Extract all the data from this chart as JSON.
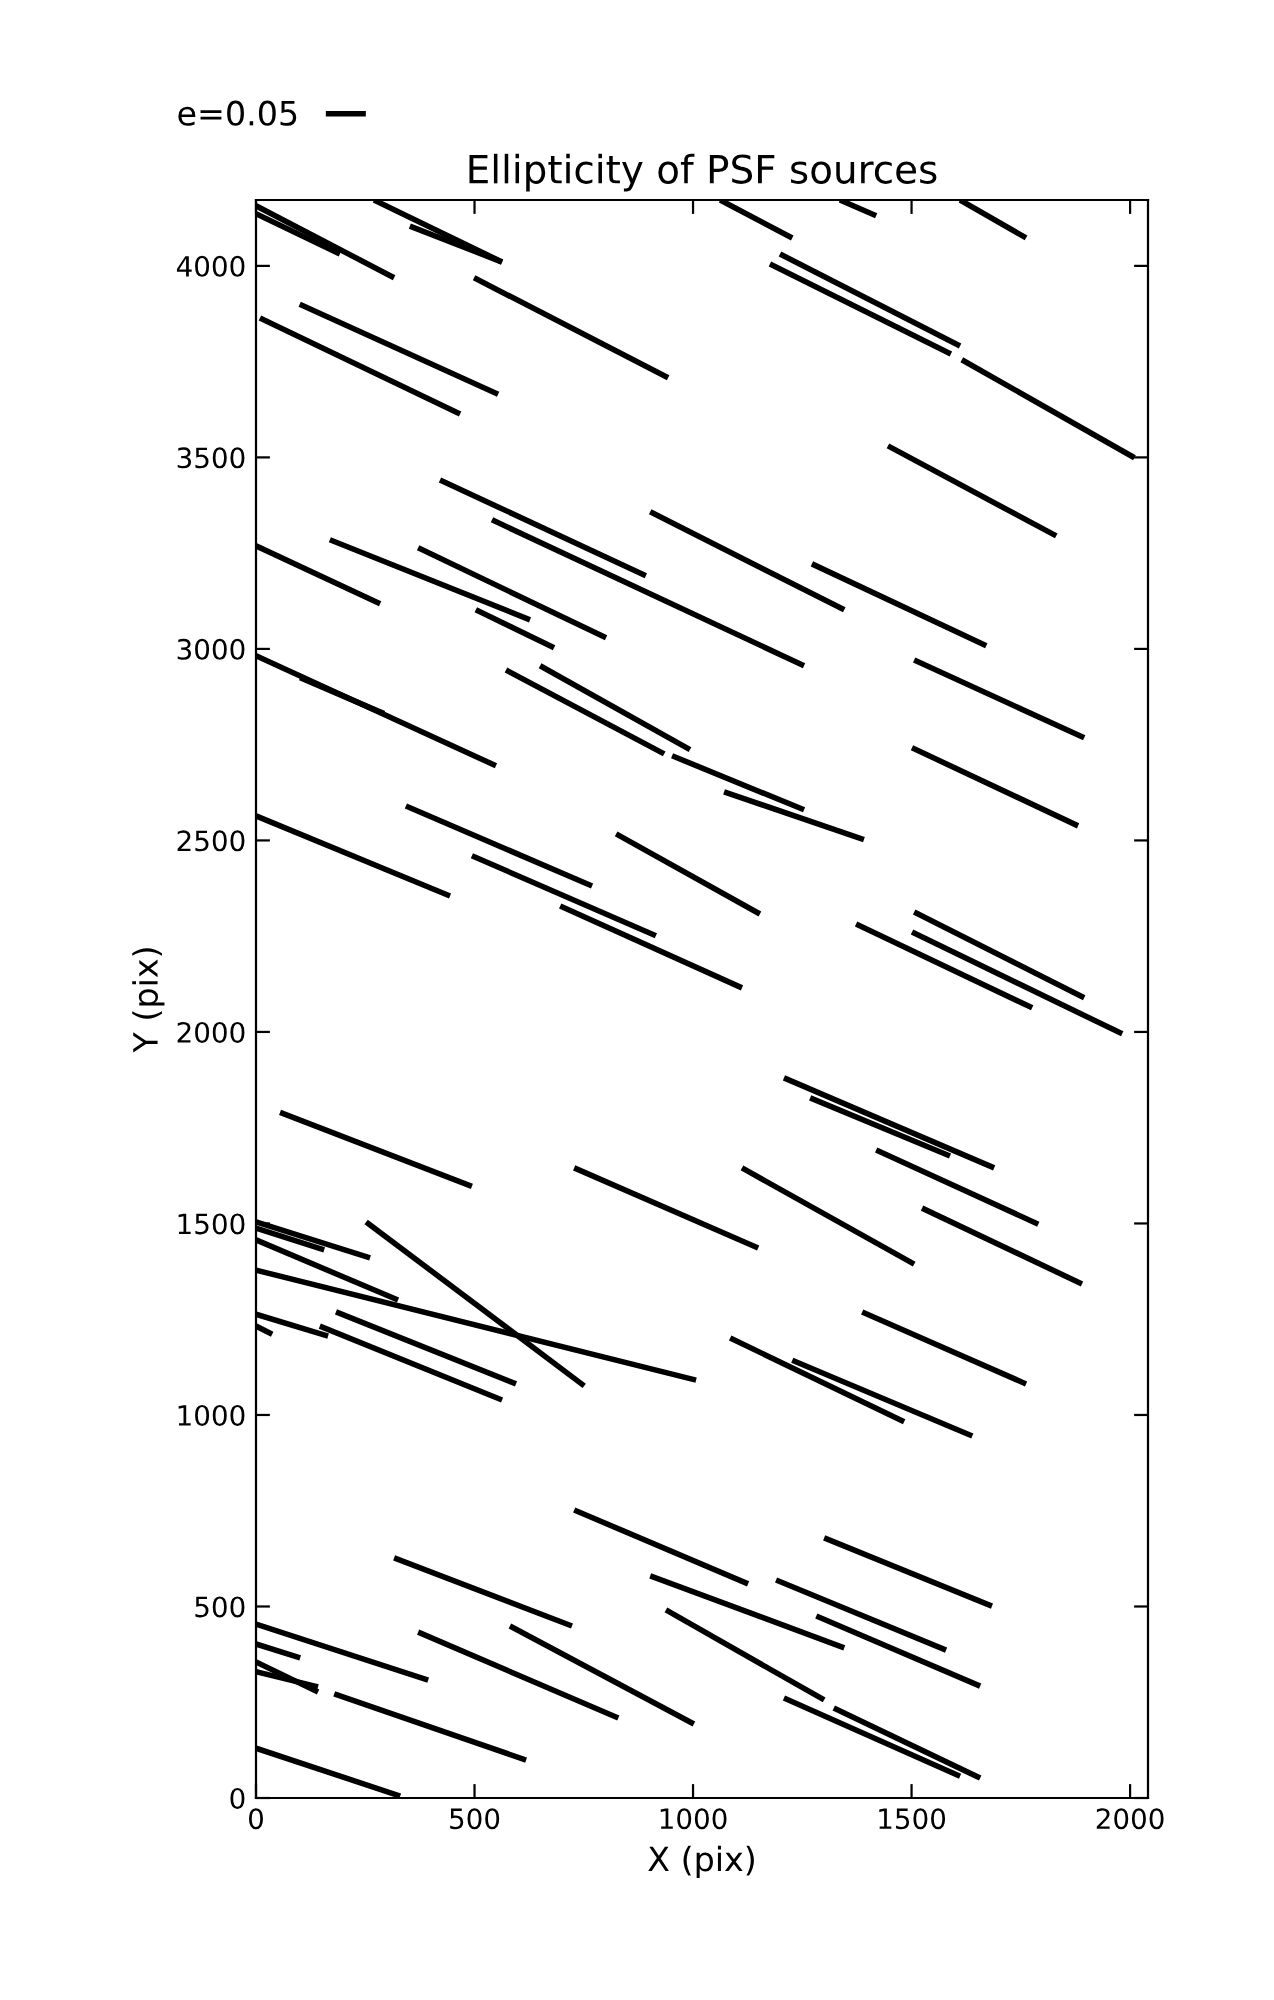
{
  "chart_data": {
    "type": "line",
    "title": "Ellipticity of PSF sources",
    "xlabel": "X (pix)",
    "ylabel": "Y (pix)",
    "xlim": [
      0,
      2041
    ],
    "ylim": [
      0,
      4172
    ],
    "xticks": [
      0,
      500,
      1000,
      1500,
      2000
    ],
    "yticks": [
      0,
      500,
      1000,
      1500,
      2000,
      2500,
      3000,
      3500,
      4000
    ],
    "grid": false,
    "legend": "top left",
    "marker": "none",
    "line_style": "solid",
    "series": [
      {
        "name": "e=0.05",
        "color": "#000000",
        "x": [
          0,
          316
        ],
        "values": [
          4157,
          3969
        ]
      },
      {
        "color": "#000000",
        "x": [
          0,
          192
        ],
        "values": [
          4136,
          4031
        ]
      },
      {
        "color": "#000000",
        "x": [
          270,
          563
        ],
        "values": [
          4172,
          4010
        ]
      },
      {
        "color": "#000000",
        "x": [
          352,
          563
        ],
        "values": [
          4104,
          4010
        ]
      },
      {
        "color": "#000000",
        "x": [
          499,
          943
        ],
        "values": [
          3969,
          3708
        ]
      },
      {
        "color": "#000000",
        "x": [
          9,
          467
        ],
        "values": [
          3864,
          3613
        ]
      },
      {
        "color": "#000000",
        "x": [
          100,
          554
        ],
        "values": [
          3900,
          3665
        ]
      },
      {
        "color": "#000000",
        "x": [
          1062,
          1227
        ],
        "values": [
          4172,
          4073
        ]
      },
      {
        "color": "#000000",
        "x": [
          1336,
          1419
        ],
        "values": [
          4172,
          4131
        ]
      },
      {
        "color": "#000000",
        "x": [
          1611,
          1762
        ],
        "values": [
          4172,
          4073
        ]
      },
      {
        "color": "#000000",
        "x": [
          1199,
          1611
        ],
        "values": [
          4031,
          3791
        ]
      },
      {
        "color": "#000000",
        "x": [
          1176,
          1590
        ],
        "values": [
          4005,
          3770
        ]
      },
      {
        "color": "#000000",
        "x": [
          1615,
          2010
        ],
        "values": [
          3755,
          3499
        ]
      },
      {
        "color": "#000000",
        "x": [
          1446,
          1831
        ],
        "values": [
          3530,
          3295
        ]
      },
      {
        "color": "#000000",
        "x": [
          421,
          892
        ],
        "values": [
          3441,
          3191
        ]
      },
      {
        "color": "#000000",
        "x": [
          540,
          1254
        ],
        "values": [
          3337,
          2956
        ]
      },
      {
        "color": "#000000",
        "x": [
          902,
          1346
        ],
        "values": [
          3358,
          3102
        ]
      },
      {
        "color": "#000000",
        "x": [
          1272,
          1671
        ],
        "values": [
          3222,
          3008
        ]
      },
      {
        "color": "#000000",
        "x": [
          0,
          284
        ],
        "values": [
          3269,
          3118
        ]
      },
      {
        "color": "#000000",
        "x": [
          169,
          627
        ],
        "values": [
          3285,
          3076
        ]
      },
      {
        "color": "#000000",
        "x": [
          371,
          801
        ],
        "values": [
          3264,
          3029
        ]
      },
      {
        "color": "#000000",
        "x": [
          503,
          682
        ],
        "values": [
          3102,
          3003
        ]
      },
      {
        "color": "#000000",
        "x": [
          572,
          934
        ],
        "values": [
          2945,
          2726
        ]
      },
      {
        "color": "#000000",
        "x": [
          650,
          993
        ],
        "values": [
          2956,
          2737
        ]
      },
      {
        "color": "#000000",
        "x": [
          0,
          549
        ],
        "values": [
          2982,
          2695
        ]
      },
      {
        "color": "#000000",
        "x": [
          101,
          293
        ],
        "values": [
          2925,
          2831
        ]
      },
      {
        "color": "#000000",
        "x": [
          952,
          1254
        ],
        "values": [
          2721,
          2580
        ]
      },
      {
        "color": "#000000",
        "x": [
          1071,
          1391
        ],
        "values": [
          2627,
          2502
        ]
      },
      {
        "color": "#000000",
        "x": [
          824,
          1153
        ],
        "values": [
          2517,
          2308
        ]
      },
      {
        "color": "#000000",
        "x": [
          1506,
          1895
        ],
        "values": [
          2971,
          2768
        ]
      },
      {
        "color": "#000000",
        "x": [
          1501,
          1881
        ],
        "values": [
          2742,
          2538
        ]
      },
      {
        "color": "#000000",
        "x": [
          0,
          444
        ],
        "values": [
          2564,
          2355
        ]
      },
      {
        "color": "#000000",
        "x": [
          343,
          769
        ],
        "values": [
          2590,
          2381
        ]
      },
      {
        "color": "#000000",
        "x": [
          494,
          915
        ],
        "values": [
          2460,
          2251
        ]
      },
      {
        "color": "#000000",
        "x": [
          696,
          1112
        ],
        "values": [
          2329,
          2115
        ]
      },
      {
        "color": "#000000",
        "x": [
          1506,
          1895
        ],
        "values": [
          2313,
          2089
        ]
      },
      {
        "color": "#000000",
        "x": [
          1373,
          1776
        ],
        "values": [
          2282,
          2063
        ]
      },
      {
        "color": "#000000",
        "x": [
          1501,
          1982
        ],
        "values": [
          2261,
          1995
        ]
      },
      {
        "color": "#000000",
        "x": [
          55,
          494
        ],
        "values": [
          1790,
          1597
        ]
      },
      {
        "color": "#000000",
        "x": [
          728,
          1149
        ],
        "values": [
          1645,
          1436
        ]
      },
      {
        "color": "#000000",
        "x": [
          1112,
          1506
        ],
        "values": [
          1645,
          1394
        ]
      },
      {
        "color": "#000000",
        "x": [
          1208,
          1689
        ],
        "values": [
          1880,
          1645
        ]
      },
      {
        "color": "#000000",
        "x": [
          1268,
          1588
        ],
        "values": [
          1828,
          1676
        ]
      },
      {
        "color": "#000000",
        "x": [
          1419,
          1790
        ],
        "values": [
          1692,
          1498
        ]
      },
      {
        "color": "#000000",
        "x": [
          1524,
          1890
        ],
        "values": [
          1540,
          1342
        ]
      },
      {
        "color": "#000000",
        "x": [
          0,
          261
        ],
        "values": [
          1504,
          1410
        ]
      },
      {
        "color": "#000000",
        "x": [
          0,
          156
        ],
        "values": [
          1488,
          1431
        ]
      },
      {
        "color": "#000000",
        "x": [
          252,
          751
        ],
        "values": [
          1504,
          1076
        ]
      },
      {
        "color": "#000000",
        "x": [
          0,
          325
        ],
        "values": [
          1457,
          1300
        ]
      },
      {
        "color": "#000000",
        "x": [
          0,
          1007
        ],
        "values": [
          1378,
          1091
        ]
      },
      {
        "color": "#000000",
        "x": [
          0,
          165
        ],
        "values": [
          1263,
          1206
        ]
      },
      {
        "color": "#000000",
        "x": [
          0,
          37
        ],
        "values": [
          1232,
          1211
        ]
      },
      {
        "color": "#000000",
        "x": [
          183,
          595
        ],
        "values": [
          1269,
          1081
        ]
      },
      {
        "color": "#000000",
        "x": [
          146,
          563
        ],
        "values": [
          1232,
          1039
        ]
      },
      {
        "color": "#000000",
        "x": [
          1085,
          1483
        ],
        "values": [
          1201,
          982
        ]
      },
      {
        "color": "#000000",
        "x": [
          1227,
          1639
        ],
        "values": [
          1143,
          945
        ]
      },
      {
        "color": "#000000",
        "x": [
          1387,
          1762
        ],
        "values": [
          1269,
          1081
        ]
      },
      {
        "color": "#000000",
        "x": [
          728,
          1126
        ],
        "values": [
          752,
          559
        ]
      },
      {
        "color": "#000000",
        "x": [
          1300,
          1684
        ],
        "values": [
          679,
          501
        ]
      },
      {
        "color": "#000000",
        "x": [
          902,
          1346
        ],
        "values": [
          580,
          392
        ]
      },
      {
        "color": "#000000",
        "x": [
          316,
          723
        ],
        "values": [
          627,
          449
        ]
      },
      {
        "color": "#000000",
        "x": [
          0,
          394
        ],
        "values": [
          454,
          308
        ]
      },
      {
        "color": "#000000",
        "x": [
          0,
          101
        ],
        "values": [
          402,
          366
        ]
      },
      {
        "color": "#000000",
        "x": [
          0,
          142
        ],
        "values": [
          355,
          277
        ]
      },
      {
        "color": "#000000",
        "x": [
          0,
          142
        ],
        "values": [
          330,
          290
        ]
      },
      {
        "color": "#000000",
        "x": [
          371,
          829
        ],
        "values": [
          433,
          209
        ]
      },
      {
        "color": "#000000",
        "x": [
          581,
          1002
        ],
        "values": [
          449,
          193
        ]
      },
      {
        "color": "#000000",
        "x": [
          938,
          1300
        ],
        "values": [
          491,
          256
        ]
      },
      {
        "color": "#000000",
        "x": [
          1190,
          1579
        ],
        "values": [
          569,
          386
        ]
      },
      {
        "color": "#000000",
        "x": [
          1282,
          1657
        ],
        "values": [
          475,
          292
        ]
      },
      {
        "color": "#000000",
        "x": [
          179,
          618
        ],
        "values": [
          272,
          99
        ]
      },
      {
        "color": "#000000",
        "x": [
          1208,
          1611
        ],
        "values": [
          261,
          57
        ]
      },
      {
        "color": "#000000",
        "x": [
          1322,
          1657
        ],
        "values": [
          235,
          52
        ]
      },
      {
        "color": "#000000",
        "x": [
          0,
          330
        ],
        "values": [
          130,
          5
        ]
      }
    ]
  }
}
